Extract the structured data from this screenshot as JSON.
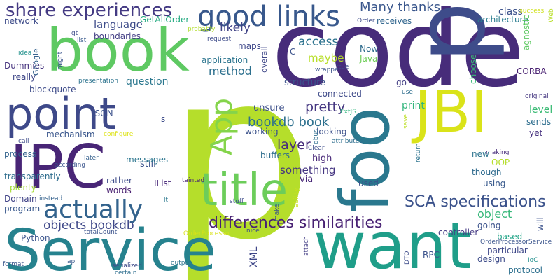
{
  "words": [
    {
      "text": "p",
      "color": "#b5de2b",
      "vertical": false
    },
    {
      "text": "code",
      "color": "#472c7a",
      "vertical": false
    },
    {
      "text": "Service",
      "color": "#26828e",
      "vertical": false
    },
    {
      "text": "pre",
      "color": "#3e4c8a",
      "vertical": true
    },
    {
      "text": "want",
      "color": "#1f9e89",
      "vertical": false
    },
    {
      "text": "book",
      "color": "#5ec962",
      "vertical": false
    },
    {
      "text": "IPC",
      "color": "#482576",
      "vertical": false
    },
    {
      "text": "point",
      "color": "#3e4989",
      "vertical": false
    },
    {
      "text": "JBI",
      "color": "#dae319",
      "vertical": false
    },
    {
      "text": "foo",
      "color": "#2a788e",
      "vertical": true
    },
    {
      "text": "title",
      "color": "#6ccd5a",
      "vertical": false
    },
    {
      "text": "App",
      "color": "#84d44b",
      "vertical": true
    },
    {
      "text": "actually",
      "color": "#33638d",
      "vertical": false
    },
    {
      "text": "good links",
      "color": "#38588c",
      "vertical": false
    },
    {
      "text": "share experiences",
      "color": "#443a83",
      "vertical": false
    },
    {
      "text": "differences similarities",
      "color": "#482173",
      "vertical": false
    },
    {
      "text": "SCA specifications",
      "color": "#3b528b",
      "vertical": false
    },
    {
      "text": "objects bookdb",
      "color": "#3f4889",
      "vertical": false
    },
    {
      "text": "bookdb book",
      "color": "#2d708e",
      "vertical": false
    },
    {
      "text": "Many thanks",
      "color": "#39568c",
      "vertical": false
    },
    {
      "text": "language",
      "color": "#3e4c8a",
      "vertical": false
    },
    {
      "text": "likely",
      "color": "#414487",
      "vertical": false
    },
    {
      "text": "access",
      "color": "#2c728e",
      "vertical": false
    },
    {
      "text": "maybe",
      "color": "#b8de29",
      "vertical": false
    },
    {
      "text": "pretty",
      "color": "#453781",
      "vertical": false
    },
    {
      "text": "method",
      "color": "#2d708e",
      "vertical": false
    },
    {
      "text": "layer",
      "color": "#472d7b",
      "vertical": false
    },
    {
      "text": "question",
      "color": "#2a778e",
      "vertical": false
    },
    {
      "text": "object",
      "color": "#35b779",
      "vertical": false
    },
    {
      "text": "something",
      "color": "#453581",
      "vertical": false
    },
    {
      "text": "class",
      "color": "#3b518b",
      "vertical": false
    },
    {
      "text": "architecture",
      "color": "#287c8e",
      "vertical": false
    },
    {
      "text": "structure",
      "color": "#3b528b",
      "vertical": false
    },
    {
      "text": "connected",
      "color": "#3e4a89",
      "vertical": false
    },
    {
      "text": "XML",
      "color": "#3f4788",
      "vertical": true
    },
    {
      "text": "level",
      "color": "#3bbb75",
      "vertical": false
    },
    {
      "text": "CORBA",
      "color": "#482071",
      "vertical": false
    },
    {
      "text": "print",
      "color": "#31b57b",
      "vertical": false
    },
    {
      "text": "still",
      "color": "#3b528b",
      "vertical": false
    },
    {
      "text": "high",
      "color": "#482878",
      "vertical": false
    },
    {
      "text": "unsure",
      "color": "#3c4f8a",
      "vertical": false
    },
    {
      "text": "working",
      "color": "#3b528b",
      "vertical": false
    },
    {
      "text": "looking",
      "color": "#3c508b",
      "vertical": false
    },
    {
      "text": "buffers",
      "color": "#2e6d8e",
      "vertical": false
    },
    {
      "text": "process",
      "color": "#33638d",
      "vertical": false
    },
    {
      "text": "mechanism",
      "color": "#39568c",
      "vertical": false
    },
    {
      "text": "messages",
      "color": "#2b758e",
      "vertical": false
    },
    {
      "text": "blockquote",
      "color": "#3e4c8a",
      "vertical": false
    },
    {
      "text": "plenty",
      "color": "#a5db36",
      "vertical": false
    },
    {
      "text": "transparently",
      "color": "#2e6d8e",
      "vertical": false
    },
    {
      "text": "boundaries",
      "color": "#433e85",
      "vertical": false
    },
    {
      "text": "application",
      "color": "#2b748e",
      "vertical": false
    },
    {
      "text": "Now",
      "color": "#2f6c8e",
      "vertical": false
    },
    {
      "text": "Java",
      "color": "#6ece58",
      "vertical": false
    },
    {
      "text": "maps",
      "color": "#3f4889",
      "vertical": false
    },
    {
      "text": "receives",
      "color": "#31668e",
      "vertical": false
    },
    {
      "text": "network",
      "color": "#3e4c8a",
      "vertical": false
    },
    {
      "text": "really",
      "color": "#3f4788",
      "vertical": false
    },
    {
      "text": "Dummies",
      "color": "#46337e",
      "vertical": false
    },
    {
      "text": "Python",
      "color": "#3a548c",
      "vertical": false
    },
    {
      "text": "program",
      "color": "#38588c",
      "vertical": false
    },
    {
      "text": "Domain",
      "color": "#414487",
      "vertical": false
    },
    {
      "text": "rather",
      "color": "#3e4c8a",
      "vertical": false
    },
    {
      "text": "words",
      "color": "#481f70",
      "vertical": false
    },
    {
      "text": "via",
      "color": "#482878",
      "vertical": false
    },
    {
      "text": "used",
      "color": "#3a538b",
      "vertical": false
    },
    {
      "text": "controller",
      "color": "#443983",
      "vertical": false
    },
    {
      "text": "going",
      "color": "#3b528b",
      "vertical": false
    },
    {
      "text": "based",
      "color": "#20a386",
      "vertical": false
    },
    {
      "text": "design",
      "color": "#3e4c8a",
      "vertical": false
    },
    {
      "text": "particular",
      "color": "#3f4889",
      "vertical": false
    },
    {
      "text": "protocol",
      "color": "#2d708e",
      "vertical": false
    },
    {
      "text": "RPC",
      "color": "#3b528b",
      "vertical": false
    },
    {
      "text": "new",
      "color": "#2c738e",
      "vertical": false
    },
    {
      "text": "OOP",
      "color": "#b5de2b",
      "vertical": false
    },
    {
      "text": "using",
      "color": "#38598c",
      "vertical": false
    },
    {
      "text": "though",
      "color": "#2f6b8e",
      "vertical": false
    },
    {
      "text": "yet",
      "color": "#46307e",
      "vertical": false
    },
    {
      "text": "sends",
      "color": "#2e6e8e",
      "vertical": false
    },
    {
      "text": "choose",
      "color": "#38b977",
      "vertical": true
    },
    {
      "text": "go",
      "color": "#433e85",
      "vertical": false
    },
    {
      "text": "JSON",
      "color": "#3b518b",
      "vertical": false
    },
    {
      "text": "IList",
      "color": "#482979",
      "vertical": false
    },
    {
      "text": "GetAllOrder",
      "color": "#25ab82",
      "vertical": false
    },
    {
      "text": "agnostic",
      "color": "#5ec962",
      "vertical": true
    },
    {
      "text": "Order",
      "color": "#3e4c8a",
      "vertical": false
    },
    {
      "text": "Web",
      "color": "#b8de29",
      "vertical": true
    },
    {
      "text": "original",
      "color": "#453781",
      "vertical": false
    },
    {
      "text": "overall",
      "color": "#3f4889",
      "vertical": true
    },
    {
      "text": "Google",
      "color": "#34618d",
      "vertical": true
    },
    {
      "text": "might",
      "color": "#3a548c",
      "vertical": true
    },
    {
      "text": "idea",
      "color": "#21918c",
      "vertical": false
    },
    {
      "text": "presentation",
      "color": "#2c738e",
      "vertical": false
    },
    {
      "text": "call",
      "color": "#3e4c8a",
      "vertical": false
    },
    {
      "text": "th",
      "color": "#472d7b",
      "vertical": false
    },
    {
      "text": "configure",
      "color": "#dde318",
      "vertical": false
    },
    {
      "text": "dbus",
      "color": "#2e6d8e",
      "vertical": true
    },
    {
      "text": "later",
      "color": "#35608d",
      "vertical": false
    },
    {
      "text": "according",
      "color": "#3a548c",
      "vertical": false
    },
    {
      "text": "instead",
      "color": "#34618d",
      "vertical": false
    },
    {
      "text": "ExtJS",
      "color": "#2fb47c",
      "vertical": false
    },
    {
      "text": "Clear",
      "color": "#3e4c8a",
      "vertical": false
    },
    {
      "text": "attributes",
      "color": "#2e6e8e",
      "vertical": false
    },
    {
      "text": "making",
      "color": "#472d7b",
      "vertical": false
    },
    {
      "text": "tainted",
      "color": "#482475",
      "vertical": false
    },
    {
      "text": "lt",
      "color": "#2a788e",
      "vertical": false
    },
    {
      "text": "stuff",
      "color": "#3e4c8a",
      "vertical": false
    },
    {
      "text": "ability",
      "color": "#cae11f",
      "vertical": true
    },
    {
      "text": "make",
      "color": "#3b528b",
      "vertical": true
    },
    {
      "text": "nice",
      "color": "#3e4c8a",
      "vertical": false
    },
    {
      "text": "OrderProcessor",
      "color": "#d8e219",
      "vertical": false
    },
    {
      "text": "totalCount",
      "color": "#3b528b",
      "vertical": false
    },
    {
      "text": "api",
      "color": "#38598c",
      "vertical": false
    },
    {
      "text": "format",
      "color": "#39568c",
      "vertical": false
    },
    {
      "text": "certain",
      "color": "#2e6e8e",
      "vertical": false
    },
    {
      "text": "serialized",
      "color": "#3e4c8a",
      "vertical": false
    },
    {
      "text": "output",
      "color": "#2c738e",
      "vertical": false
    },
    {
      "text": "attach",
      "color": "#433e85",
      "vertical": true
    },
    {
      "text": "DTO",
      "color": "#3e4c8a",
      "vertical": true
    },
    {
      "text": "will",
      "color": "#3b528b",
      "vertical": true
    },
    {
      "text": "IoC",
      "color": "#21908d",
      "vertical": false
    },
    {
      "text": "OrderProcessorService",
      "color": "#3a548c",
      "vertical": false
    },
    {
      "text": "request",
      "color": "#3e4c8a",
      "vertical": false
    },
    {
      "text": "probably",
      "color": "#b2dd2d",
      "vertical": false
    },
    {
      "text": "gt",
      "color": "#3e4c8a",
      "vertical": false
    },
    {
      "text": "list",
      "color": "#38598c",
      "vertical": false
    },
    {
      "text": "success",
      "color": "#d0e11c",
      "vertical": false
    },
    {
      "text": "true",
      "color": "#3e4c8a",
      "vertical": false
    },
    {
      "text": "wrapper",
      "color": "#3b528b",
      "vertical": false
    },
    {
      "text": "use",
      "color": "#2e6e8e",
      "vertical": false
    },
    {
      "text": "save",
      "color": "#bddf26",
      "vertical": true
    },
    {
      "text": "return",
      "color": "#2c738e",
      "vertical": true
    },
    {
      "text": "C",
      "color": "#3b528b",
      "vertical": false
    },
    {
      "text": "s",
      "color": "#3e4c8a",
      "vertical": false
    }
  ]
}
